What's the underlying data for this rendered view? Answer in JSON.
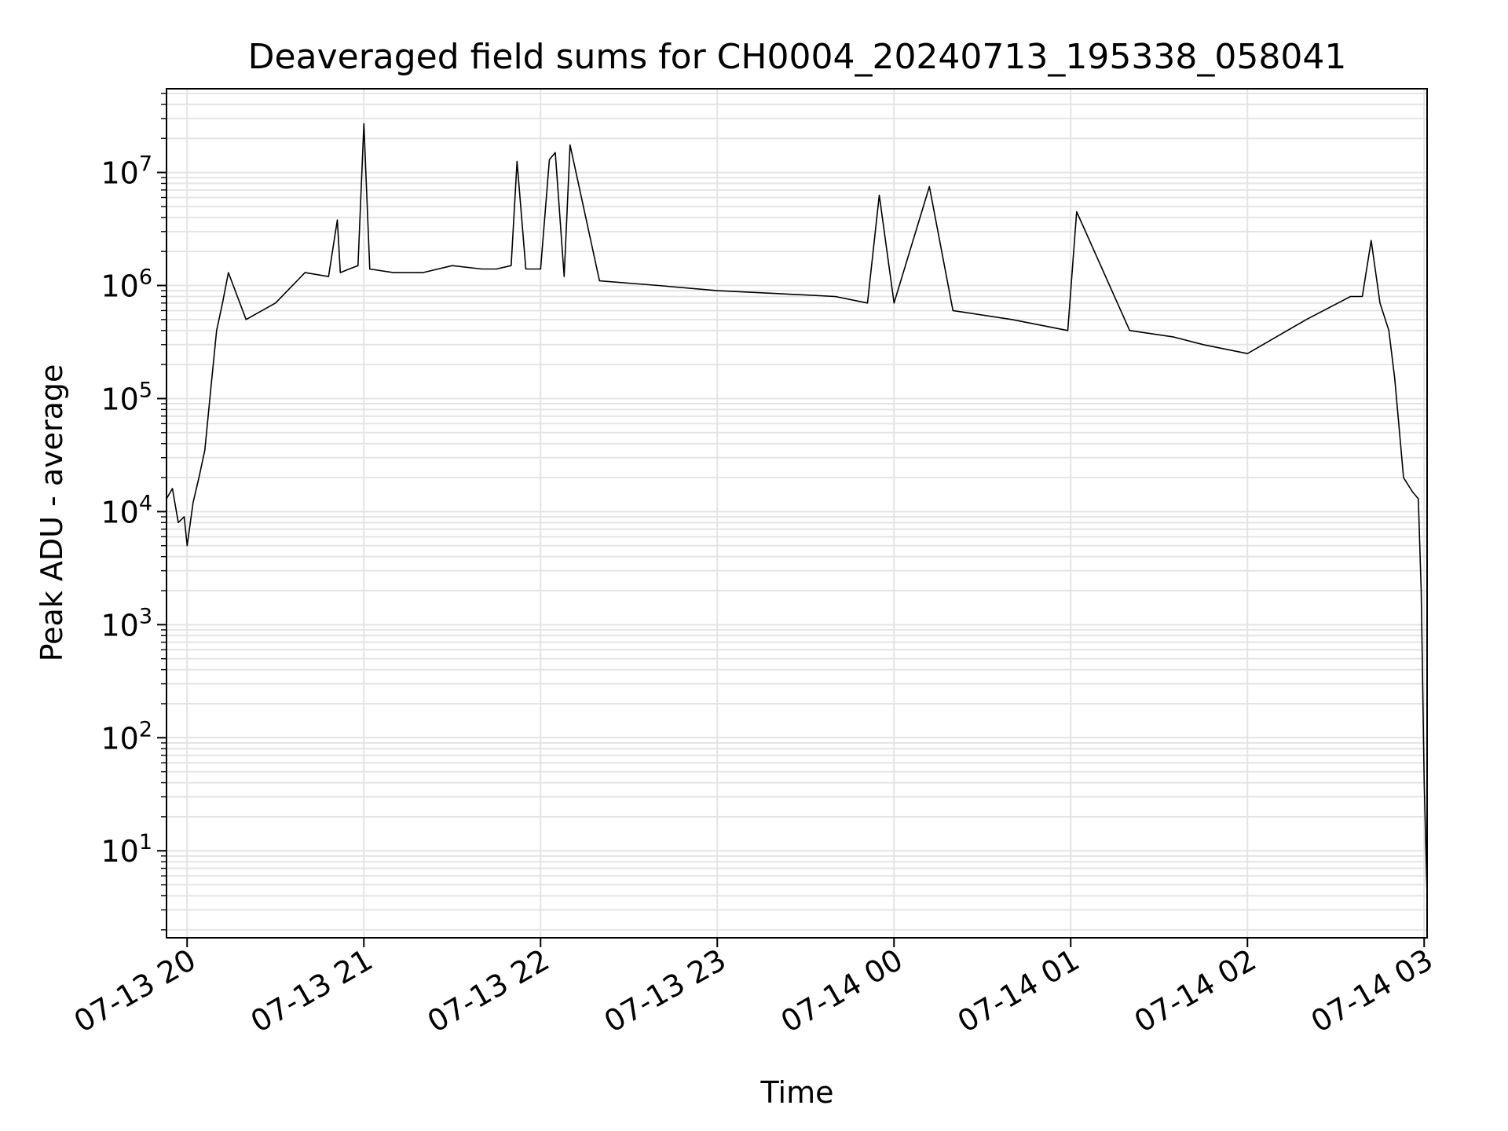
{
  "chart_data": {
    "type": "line",
    "title": "Deaveraged field sums for CH0004_20240713_195338_058041",
    "xlabel": "Time",
    "ylabel": "Peak ADU - average",
    "yscale": "log",
    "ylim": [
      1.7,
      55000000
    ],
    "xlim": [
      "07-13 19:53",
      "07-14 03:01"
    ],
    "grid": true,
    "x_ticks": [
      "07-13 20",
      "07-13 21",
      "07-13 22",
      "07-13 23",
      "07-14 00",
      "07-14 01",
      "07-14 02",
      "07-14 03"
    ],
    "y_ticks": [
      {
        "base": "10",
        "exp": "1"
      },
      {
        "base": "10",
        "exp": "2"
      },
      {
        "base": "10",
        "exp": "3"
      },
      {
        "base": "10",
        "exp": "4"
      },
      {
        "base": "10",
        "exp": "5"
      },
      {
        "base": "10",
        "exp": "6"
      },
      {
        "base": "10",
        "exp": "7"
      }
    ],
    "line_color": "#000000",
    "series": [
      {
        "x": [
          "07-13 19:53",
          "07-13 19:55",
          "07-13 19:57",
          "07-13 19:59",
          "07-13 20:00",
          "07-13 20:02",
          "07-13 20:04",
          "07-13 20:06",
          "07-13 20:08",
          "07-13 20:10",
          "07-13 20:12",
          "07-13 20:14",
          "07-13 20:20",
          "07-13 20:30",
          "07-13 20:40",
          "07-13 20:48",
          "07-13 20:51",
          "07-13 20:52",
          "07-13 20:55",
          "07-13 20:58",
          "07-13 21:00",
          "07-13 21:02",
          "07-13 21:10",
          "07-13 21:20",
          "07-13 21:30",
          "07-13 21:40",
          "07-13 21:45",
          "07-13 21:50",
          "07-13 21:52",
          "07-13 21:55",
          "07-13 22:00",
          "07-13 22:03",
          "07-13 22:05",
          "07-13 22:08",
          "07-13 22:10",
          "07-13 22:20",
          "07-13 22:40",
          "07-13 23:00",
          "07-13 23:20",
          "07-13 23:40",
          "07-13 23:51",
          "07-13 23:55",
          "07-14 00:00",
          "07-14 00:12",
          "07-14 00:20",
          "07-14 00:40",
          "07-14 00:59",
          "07-14 01:02",
          "07-14 01:20",
          "07-14 01:35",
          "07-14 01:45",
          "07-14 02:00",
          "07-14 02:20",
          "07-14 02:35",
          "07-14 02:39",
          "07-14 02:42",
          "07-14 02:45",
          "07-14 02:48",
          "07-14 02:50",
          "07-14 02:53",
          "07-14 02:56",
          "07-14 02:58",
          "07-14 02:59",
          "07-14 03:00",
          "07-14 03:01"
        ],
        "y": [
          13000,
          16000,
          8000,
          9000,
          5000,
          12000,
          20000,
          35000,
          120000,
          400000,
          700000,
          1300000,
          500000,
          700000,
          1300000,
          1200000,
          3800000,
          1300000,
          1400000,
          1500000,
          27000000,
          1400000,
          1300000,
          1300000,
          1500000,
          1400000,
          1400000,
          1500000,
          12500000,
          1400000,
          1400000,
          13000000,
          15000000,
          1200000,
          17500000,
          1100000,
          1000000,
          900000,
          850000,
          800000,
          700000,
          6300000,
          700000,
          7500000,
          600000,
          500000,
          400000,
          4500000,
          400000,
          350000,
          300000,
          250000,
          500000,
          800000,
          800000,
          2500000,
          700000,
          400000,
          150000,
          20000,
          15000,
          13000,
          2000,
          40,
          4
        ]
      }
    ]
  }
}
